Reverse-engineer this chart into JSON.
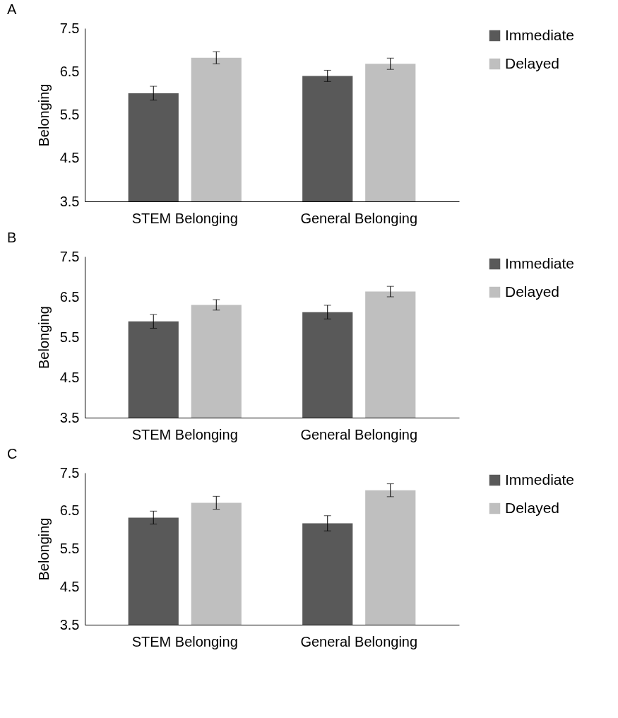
{
  "chart_data": [
    {
      "type": "bar",
      "title": "A",
      "ylabel": "Belonging",
      "categories": [
        "STEM Belonging",
        "General Belonging"
      ],
      "ylim": [
        3.5,
        7.5
      ],
      "yticks": [
        3.5,
        4.5,
        5.5,
        6.5,
        7.5
      ],
      "legend": "right",
      "series": [
        {
          "name": "Immediate",
          "color": "#595959",
          "values": [
            6.0,
            6.4
          ],
          "errors": [
            0.16,
            0.13
          ]
        },
        {
          "name": "Delayed",
          "color": "#bfbfbf",
          "values": [
            6.82,
            6.68
          ],
          "errors": [
            0.14,
            0.13
          ]
        }
      ]
    },
    {
      "type": "bar",
      "title": "B",
      "ylabel": "Belonging",
      "categories": [
        "STEM Belonging",
        "General Belonging"
      ],
      "ylim": [
        3.5,
        7.5
      ],
      "yticks": [
        3.5,
        4.5,
        5.5,
        6.5,
        7.5
      ],
      "legend": "right",
      "series": [
        {
          "name": "Immediate",
          "color": "#595959",
          "values": [
            5.89,
            6.12
          ],
          "errors": [
            0.17,
            0.17
          ]
        },
        {
          "name": "Delayed",
          "color": "#bfbfbf",
          "values": [
            6.3,
            6.63
          ],
          "errors": [
            0.13,
            0.13
          ]
        }
      ]
    },
    {
      "type": "bar",
      "title": "C",
      "ylabel": "Belonging",
      "categories": [
        "STEM Belonging",
        "General Belonging"
      ],
      "ylim": [
        3.5,
        7.5
      ],
      "yticks": [
        3.5,
        4.5,
        5.5,
        6.5,
        7.5
      ],
      "legend": "right",
      "series": [
        {
          "name": "Immediate",
          "color": "#595959",
          "values": [
            6.32,
            6.17
          ],
          "errors": [
            0.17,
            0.2
          ]
        },
        {
          "name": "Delayed",
          "color": "#bfbfbf",
          "values": [
            6.71,
            7.04
          ],
          "errors": [
            0.17,
            0.17
          ]
        }
      ]
    }
  ]
}
